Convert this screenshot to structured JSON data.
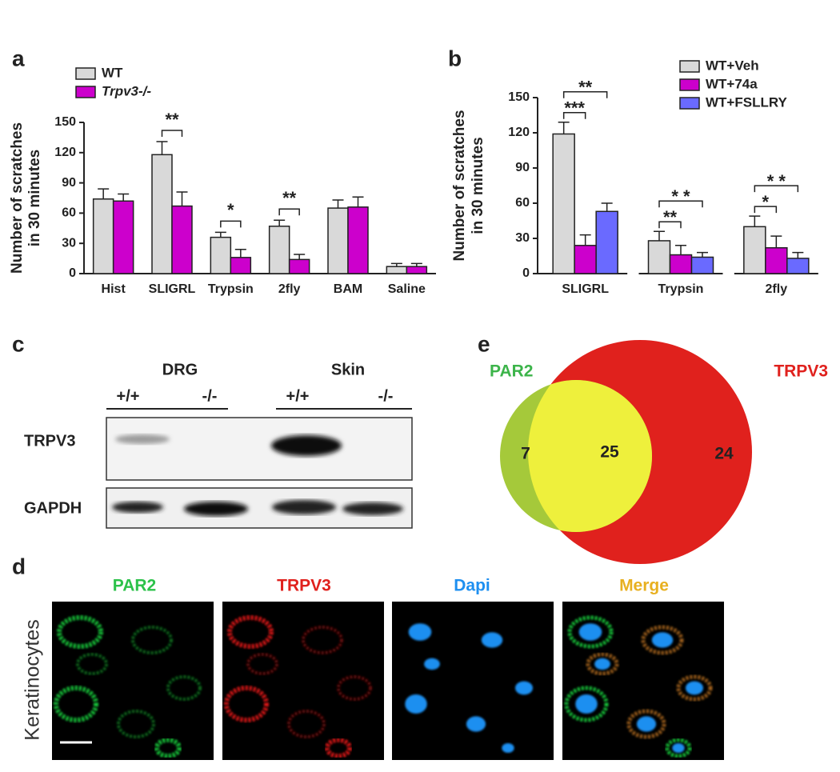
{
  "chart_data": [
    {
      "type": "bar",
      "panel": "a",
      "y_label": [
        "Number of scratches",
        "in 30  minutes"
      ],
      "categories": [
        "Hist",
        "SLIGRL",
        "Trypsin",
        "2fly",
        "BAM",
        "Saline"
      ],
      "series": [
        {
          "name": "WT",
          "color": "#d9d9d9",
          "values": [
            74,
            118,
            36,
            47,
            65,
            7
          ],
          "errors": [
            10,
            13,
            5,
            6,
            8,
            3
          ]
        },
        {
          "name": "Trpv3-/-",
          "color": "#cc00cc",
          "values": [
            72,
            67,
            16,
            14,
            66,
            7
          ],
          "errors": [
            7,
            14,
            8,
            5,
            10,
            3
          ]
        }
      ],
      "significance": [
        null,
        "**",
        "*",
        "**",
        null,
        null
      ],
      "ylim": [
        0,
        150
      ],
      "yticks": [
        0,
        30,
        60,
        90,
        120,
        150
      ]
    },
    {
      "type": "bar",
      "panel": "b",
      "y_label": [
        "Number of scratches",
        "in 30  minutes"
      ],
      "categories": [
        "SLIGRL",
        "Trypsin",
        "2fly"
      ],
      "series": [
        {
          "name": "WT+Veh",
          "color": "#d9d9d9",
          "values": [
            119,
            28,
            40
          ],
          "errors": [
            10,
            8,
            9
          ]
        },
        {
          "name": "WT+74a",
          "color": "#cc00cc",
          "values": [
            24,
            16,
            22
          ],
          "errors": [
            9,
            8,
            10
          ]
        },
        {
          "name": "WT+FSLLRY",
          "color": "#6a6aff",
          "values": [
            53,
            14,
            13
          ],
          "errors": [
            7,
            4,
            5
          ]
        }
      ],
      "comparisons": [
        [
          "***",
          "**"
        ],
        [
          "**",
          "* *"
        ],
        [
          "*",
          "* *"
        ]
      ],
      "ylim": [
        0,
        150
      ],
      "yticks": [
        0,
        30,
        60,
        90,
        120,
        150
      ]
    }
  ],
  "blot": {
    "panel": "c",
    "groups": [
      "DRG",
      "Skin"
    ],
    "genotypes": [
      "+/+",
      "-/-",
      "+/+",
      "-/-"
    ],
    "rows": [
      "TRPV3",
      "GAPDH"
    ]
  },
  "images": {
    "panel": "d",
    "row_label": "Keratinocytes",
    "channels": [
      "PAR2",
      "TRPV3",
      "Dapi",
      "Merge"
    ]
  },
  "venn": {
    "panel": "e",
    "sets": [
      "PAR2",
      "TRPV3"
    ],
    "only_a": 7,
    "both": 25,
    "only_b": 24
  }
}
